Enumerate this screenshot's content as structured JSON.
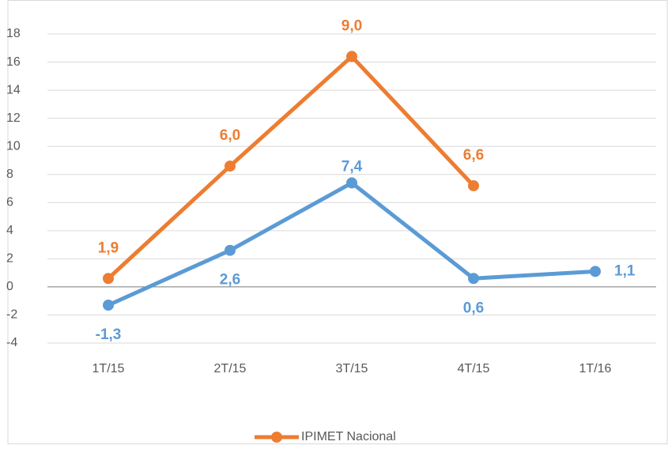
{
  "chart_data": {
    "type": "line",
    "categories": [
      "1T/15",
      "2T/15",
      "3T/15",
      "4T/15",
      "1T/16"
    ],
    "series": [
      {
        "name": "IPIMET Nacional",
        "color": "#ED7D31",
        "values": [
          0.6,
          8.6,
          16.4,
          7.2,
          null
        ],
        "annotations": [
          "1,9",
          "6,0",
          "9,0",
          "6,6",
          null
        ]
      },
      {
        "color": "#5B9BD5",
        "values": [
          -1.3,
          2.6,
          7.4,
          0.6,
          1.1
        ],
        "value_labels": [
          "-1,3",
          "2,6",
          "7,4",
          "0,6",
          "1,1"
        ]
      }
    ],
    "ylim": [
      -4,
      18
    ],
    "yticks": [
      -4,
      -2,
      0,
      2,
      4,
      6,
      8,
      10,
      12,
      14,
      16,
      18
    ],
    "grid": true,
    "legend": "bottom"
  }
}
